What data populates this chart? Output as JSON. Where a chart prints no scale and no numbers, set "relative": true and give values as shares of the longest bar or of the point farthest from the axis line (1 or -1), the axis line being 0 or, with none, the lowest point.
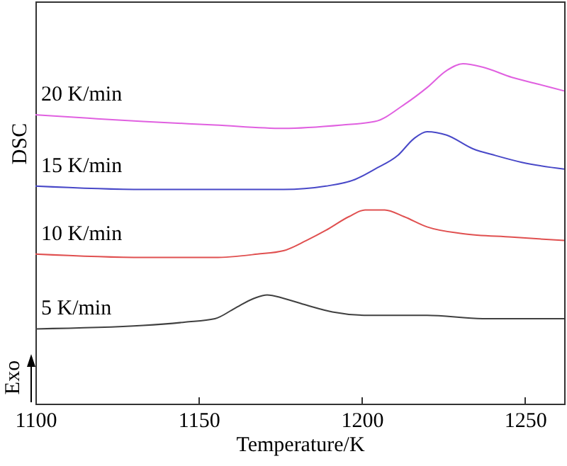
{
  "chart_data": {
    "type": "line",
    "relative": true,
    "xlabel": "Temperature/K",
    "ylabel": "DSC",
    "xlim": [
      1100,
      1262
    ],
    "xticks": [
      1100,
      1150,
      1200,
      1250
    ],
    "grid": false,
    "annotations": [
      "Exo"
    ],
    "series": [
      {
        "name": "20 K/min",
        "color": "#e060e0",
        "x": [
          1100,
          1116,
          1133,
          1155,
          1176,
          1194,
          1204,
          1213,
          1220,
          1226,
          1231,
          1237,
          1246,
          1254,
          1262
        ],
        "values": [
          0.85,
          0.84,
          0.83,
          0.82,
          0.81,
          0.82,
          0.83,
          0.88,
          0.93,
          0.98,
          1,
          0.99,
          0.96,
          0.94,
          0.92
        ]
      },
      {
        "name": "15 K/min",
        "color": "#4848c8",
        "x": [
          1100,
          1133,
          1155,
          1176,
          1189,
          1198,
          1204,
          1211,
          1216,
          1220,
          1226,
          1234,
          1241,
          1249,
          1262
        ],
        "values": [
          0.64,
          0.63,
          0.63,
          0.63,
          0.64,
          0.66,
          0.69,
          0.73,
          0.78,
          0.8,
          0.79,
          0.75,
          0.73,
          0.71,
          0.69
        ]
      },
      {
        "name": "10 K/min",
        "color": "#e05050",
        "x": [
          1100,
          1133,
          1155,
          1168,
          1176,
          1183,
          1189,
          1196,
          1201,
          1207,
          1213,
          1220,
          1231,
          1246,
          1262
        ],
        "values": [
          0.44,
          0.43,
          0.43,
          0.44,
          0.45,
          0.48,
          0.51,
          0.55,
          0.57,
          0.57,
          0.55,
          0.52,
          0.5,
          0.49,
          0.48
        ]
      },
      {
        "name": "5 K/min",
        "color": "#404040",
        "x": [
          1100,
          1133,
          1146,
          1155,
          1161,
          1167,
          1171,
          1176,
          1183,
          1191,
          1202,
          1220,
          1237,
          1243,
          1250,
          1262
        ],
        "values": [
          0.22,
          0.23,
          0.24,
          0.25,
          0.28,
          0.31,
          0.32,
          0.31,
          0.29,
          0.27,
          0.26,
          0.26,
          0.25,
          0.25,
          0.25,
          0.25
        ]
      }
    ]
  }
}
